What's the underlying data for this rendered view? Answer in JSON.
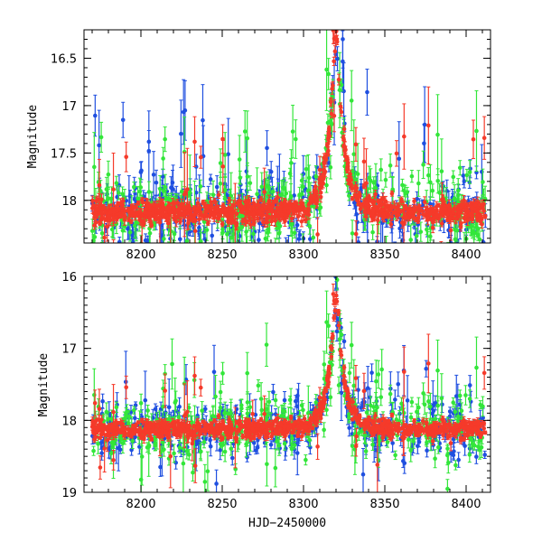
{
  "chart_data": [
    {
      "type": "scatter",
      "panel": "top",
      "xlabel": "",
      "ylabel": "Magnitude",
      "xlim": [
        8165,
        8415
      ],
      "ylim": [
        18.45,
        16.2
      ],
      "y_inverted": true,
      "xticks": [
        8200,
        8250,
        8300,
        8350,
        8400
      ],
      "yticks": [
        16.5,
        17,
        17.5,
        18
      ],
      "ytick_labels": [
        "16.5",
        "17",
        "17.5",
        "18"
      ],
      "grid": false,
      "series_colors": [
        "#1f4fe0",
        "#33e63a",
        "#f53a2a"
      ],
      "peak": {
        "x": 8320,
        "y": 16.25
      },
      "baseline": 18.12,
      "note": "Dense photometric points with error bars in three colors; red points trace a symmetric microlensing-like peak near HJD-2450000 = 8320."
    },
    {
      "type": "scatter",
      "panel": "bottom",
      "xlabel": "HJD−2450000",
      "ylabel": "Magnitude",
      "xlim": [
        8165,
        8415
      ],
      "ylim": [
        19.0,
        16.0
      ],
      "y_inverted": true,
      "xticks": [
        8200,
        8250,
        8300,
        8350,
        8400
      ],
      "yticks": [
        16,
        17,
        18,
        19
      ],
      "ytick_labels": [
        "16",
        "17",
        "18",
        "19"
      ],
      "grid": false,
      "series_colors": [
        "#1f4fe0",
        "#33e63a",
        "#f53a2a"
      ],
      "peak": {
        "x": 8320,
        "y": 16.3
      },
      "baseline": 18.12
    }
  ]
}
